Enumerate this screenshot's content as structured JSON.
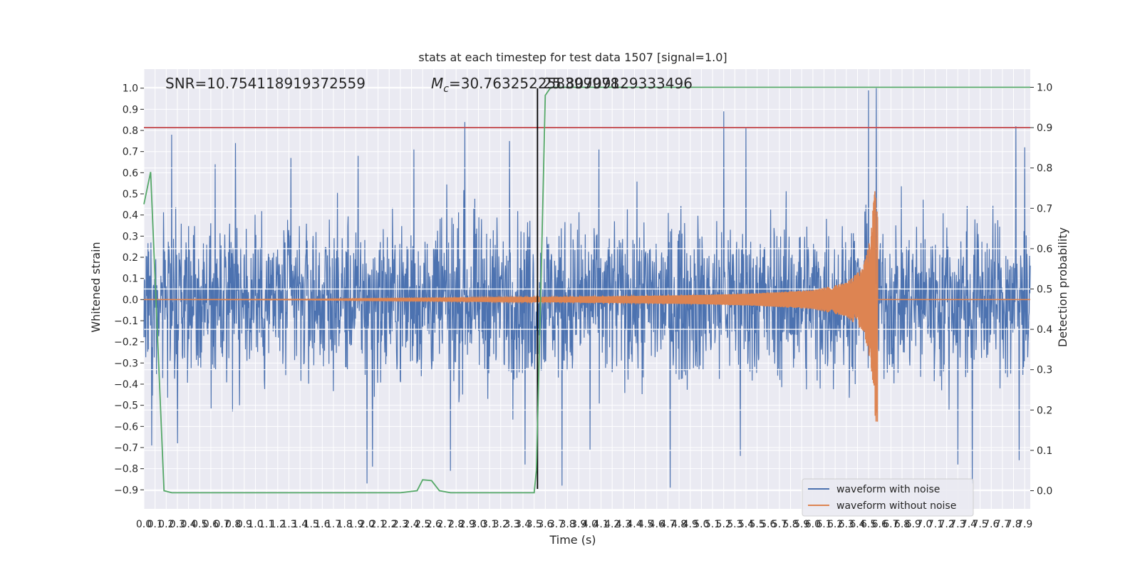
{
  "chart_data": {
    "type": "line",
    "title": "stats at each timestep for test data 1507 [signal=1.0]",
    "xlabel": "Time (s)",
    "ylabel": "Whitened strain",
    "y2label": "Detection probability",
    "xlim": [
      0.0,
      7.95
    ],
    "ylim": [
      -0.99,
      1.09
    ],
    "y2lim": [
      -0.045,
      1.045
    ],
    "x_ticks": [
      0.0,
      0.1,
      0.2,
      0.3,
      0.4,
      0.5,
      0.6,
      0.7,
      0.8,
      0.9,
      1.0,
      1.1,
      1.2,
      1.3,
      1.4,
      1.5,
      1.6,
      1.7,
      1.8,
      1.9,
      2.0,
      2.1,
      2.2,
      2.3,
      2.4,
      2.5,
      2.6,
      2.7,
      2.8,
      2.9,
      3.0,
      3.1,
      3.2,
      3.3,
      3.4,
      3.5,
      3.6,
      3.7,
      3.8,
      3.9,
      4.0,
      4.1,
      4.2,
      4.3,
      4.4,
      4.5,
      4.6,
      4.7,
      4.8,
      4.9,
      5.0,
      5.1,
      5.2,
      5.3,
      5.4,
      5.5,
      5.6,
      5.7,
      5.8,
      5.9,
      6.0,
      6.1,
      6.2,
      6.3,
      6.4,
      6.5,
      6.6,
      6.7,
      6.8,
      6.9,
      7.0,
      7.1,
      7.2,
      7.3,
      7.4,
      7.5,
      7.6,
      7.7,
      7.8,
      7.9
    ],
    "y_ticks": [
      -0.9,
      -0.8,
      -0.7,
      -0.6,
      -0.5,
      -0.4,
      -0.3,
      -0.2,
      -0.1,
      0.0,
      0.1,
      0.2,
      0.3,
      0.4,
      0.5,
      0.6,
      0.7,
      0.8,
      0.9,
      1.0
    ],
    "y2_ticks": [
      0.0,
      0.1,
      0.2,
      0.3,
      0.4,
      0.5,
      0.6,
      0.7,
      0.8,
      0.9,
      1.0
    ],
    "grid": true,
    "legend_position": "bottom-right",
    "annotations": {
      "snr": "SNR=10.754118919372559",
      "mc_symbol": "M",
      "mc_subscript": "c",
      "mc_value": "=30.763252258399978",
      "mc_overlap": "25.80709129333496"
    },
    "series": [
      {
        "name": "waveform with noise",
        "color": "#4c72b0",
        "style": "dense noisy strain, envelope approximately ±0.5 with spikes",
        "spikes": [
          {
            "x": 0.25,
            "y": 0.78
          },
          {
            "x": 0.64,
            "y": 0.64
          },
          {
            "x": 0.82,
            "y": 0.74
          },
          {
            "x": 1.32,
            "y": 0.67
          },
          {
            "x": 1.92,
            "y": 0.68
          },
          {
            "x": 2.42,
            "y": 0.71
          },
          {
            "x": 2.88,
            "y": 0.84
          },
          {
            "x": 3.28,
            "y": 0.75
          },
          {
            "x": 4.08,
            "y": 0.71
          },
          {
            "x": 5.2,
            "y": 0.89
          },
          {
            "x": 5.4,
            "y": 0.81
          },
          {
            "x": 6.5,
            "y": 0.99
          },
          {
            "x": 6.57,
            "y": 1.0
          },
          {
            "x": 7.82,
            "y": 0.82
          },
          {
            "x": 7.9,
            "y": 0.72
          },
          {
            "x": 0.07,
            "y": -0.69
          },
          {
            "x": 0.3,
            "y": -0.68
          },
          {
            "x": 2.0,
            "y": -0.87
          },
          {
            "x": 2.05,
            "y": -0.79
          },
          {
            "x": 2.75,
            "y": -0.81
          },
          {
            "x": 3.42,
            "y": -0.78
          },
          {
            "x": 3.75,
            "y": -0.88
          },
          {
            "x": 4.0,
            "y": -0.71
          },
          {
            "x": 4.72,
            "y": -0.89
          },
          {
            "x": 5.35,
            "y": -0.74
          },
          {
            "x": 7.3,
            "y": -0.78
          },
          {
            "x": 7.43,
            "y": -0.87
          },
          {
            "x": 7.85,
            "y": -0.76
          }
        ]
      },
      {
        "name": "waveform without noise",
        "color": "#dd8452",
        "style": "gravitational-wave chirp, amplitude growing toward merger",
        "merger_time": 6.58,
        "amplitude_envelope": [
          {
            "t": 0.0,
            "a": 0.0
          },
          {
            "t": 1.5,
            "a": 0.002
          },
          {
            "t": 2.0,
            "a": 0.005
          },
          {
            "t": 3.0,
            "a": 0.009
          },
          {
            "t": 4.0,
            "a": 0.014
          },
          {
            "t": 5.0,
            "a": 0.022
          },
          {
            "t": 5.5,
            "a": 0.03
          },
          {
            "t": 6.0,
            "a": 0.045
          },
          {
            "t": 6.3,
            "a": 0.08
          },
          {
            "t": 6.45,
            "a": 0.15
          },
          {
            "t": 6.52,
            "a": 0.3
          },
          {
            "t": 6.56,
            "a": 0.58
          }
        ]
      },
      {
        "name": "detection probability",
        "axis": "right",
        "color": "#55a868",
        "x": [
          0.0,
          0.06,
          0.18,
          0.25,
          0.5,
          1.0,
          1.5,
          2.0,
          2.3,
          2.45,
          2.5,
          2.58,
          2.65,
          2.75,
          3.0,
          3.5,
          3.52,
          3.56,
          3.6,
          3.65,
          4.0,
          5.0,
          6.0,
          7.0,
          7.95
        ],
        "y": [
          0.71,
          0.79,
          0.0,
          -0.005,
          -0.005,
          -0.005,
          -0.005,
          -0.005,
          -0.005,
          0.0,
          0.027,
          0.025,
          0.0,
          -0.005,
          -0.005,
          -0.005,
          0.05,
          0.5,
          0.98,
          1.0,
          1.0,
          1.0,
          1.0,
          1.0,
          1.0
        ]
      }
    ],
    "reference_lines": {
      "vertical_black_x": 3.53,
      "horizontal_red_y2": 0.9
    }
  }
}
